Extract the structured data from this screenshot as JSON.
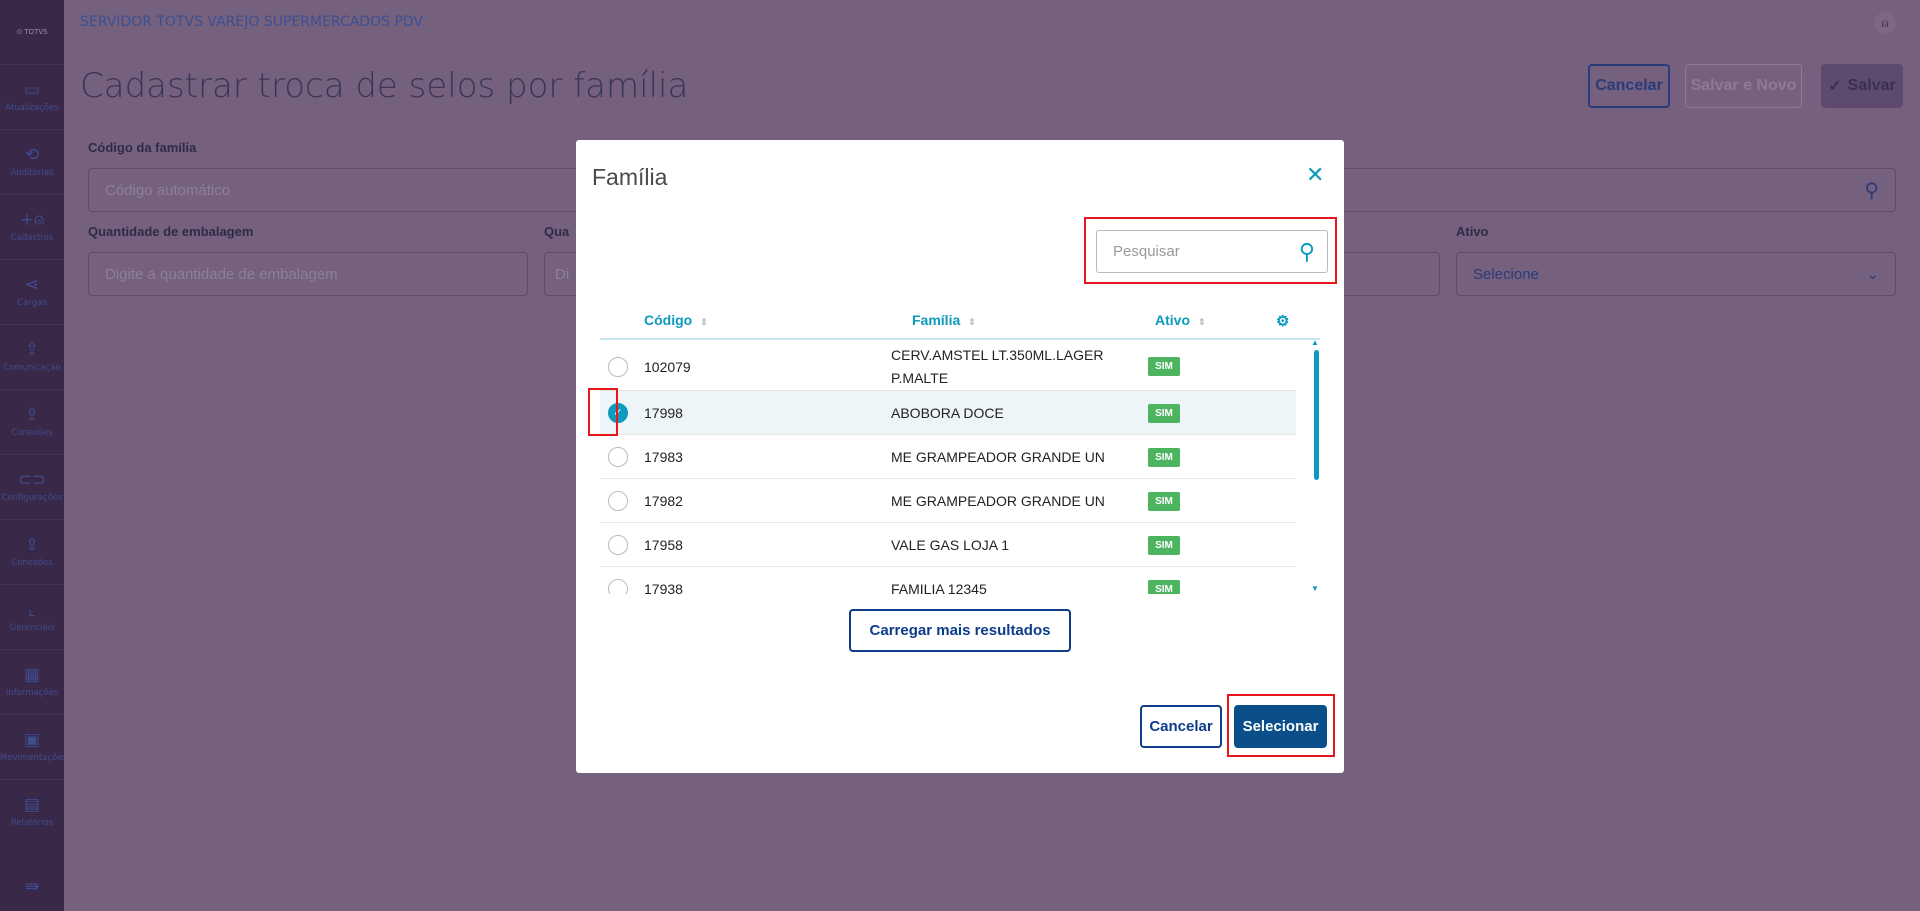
{
  "sidebar": {
    "logo": "TOTVS",
    "items": [
      {
        "label": "Atualizações",
        "icon": "server-icon"
      },
      {
        "label": "Auditorias",
        "icon": "history-icon"
      },
      {
        "label": "Cadastros",
        "icon": "add-user-icon"
      },
      {
        "label": "Cargas",
        "icon": "share-icon"
      },
      {
        "label": "Comunicação",
        "icon": "upload-file-icon"
      },
      {
        "label": "Conexões",
        "icon": "upload-file-icon"
      },
      {
        "label": "Configurações",
        "icon": "link-icon"
      },
      {
        "label": "Conexões",
        "icon": "upload-file-icon"
      },
      {
        "label": "Gerenciais",
        "icon": "chart-icon"
      },
      {
        "label": "Informações",
        "icon": "building-icon"
      },
      {
        "label": "Movimentações",
        "icon": "book-icon"
      },
      {
        "label": "Relatórios",
        "icon": "report-icon"
      }
    ]
  },
  "header": {
    "app_title": "SERVIDOR TOTVS VAREJO SUPERMERCADOS PDV",
    "page_title": "Cadastrar troca de selos por família"
  },
  "toolbar": {
    "cancel": "Cancelar",
    "save_new": "Salvar e Novo",
    "save": "Salvar"
  },
  "form": {
    "codigo_label": "Código da família",
    "codigo_placeholder": "Código automático",
    "qtd_label": "Quantidade de embalagem",
    "qtd_placeholder": "Digite a quantidade de embalagem",
    "qua_label": "Qua",
    "qua_placeholder": "Di",
    "ativo_label": "Ativo",
    "ativo_value": "Selecione"
  },
  "modal": {
    "title": "Família",
    "search_placeholder": "Pesquisar",
    "columns": [
      "Código",
      "Família",
      "Ativo"
    ],
    "rows": [
      {
        "codigo": "102079",
        "familia": "CERV.AMSTEL LT.350ML.LAGER P.MALTE",
        "ativo": "SIM",
        "selected": false
      },
      {
        "codigo": "17998",
        "familia": "ABOBORA DOCE",
        "ativo": "SIM",
        "selected": true
      },
      {
        "codigo": "17983",
        "familia": "ME GRAMPEADOR GRANDE UN",
        "ativo": "SIM",
        "selected": false
      },
      {
        "codigo": "17982",
        "familia": "ME GRAMPEADOR GRANDE UN",
        "ativo": "SIM",
        "selected": false
      },
      {
        "codigo": "17958",
        "familia": "VALE GAS LOJA 1",
        "ativo": "SIM",
        "selected": false
      },
      {
        "codigo": "17938",
        "familia": "FAMILIA 12345",
        "ativo": "SIM",
        "selected": false
      }
    ],
    "load_more": "Carregar mais resultados",
    "cancel": "Cancelar",
    "select": "Selecionar"
  },
  "colors": {
    "accent": "#0c9abe",
    "primary": "#0b4f8a",
    "badge": "#4cb35e",
    "highlight": "#e8161c"
  }
}
